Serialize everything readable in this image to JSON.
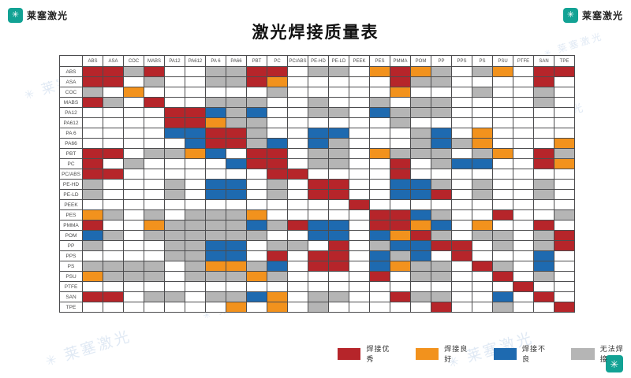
{
  "brand": {
    "name": "莱塞激光"
  },
  "title": "激光焊接质量表",
  "watermark_text": "莱塞激光",
  "legend": [
    {
      "key": "R",
      "label": "焊接优秀"
    },
    {
      "key": "O",
      "label": "焊接良好"
    },
    {
      "key": "B",
      "label": "焊接不良"
    },
    {
      "key": "G",
      "label": "无法焊接"
    }
  ],
  "colors": {
    "R": "#b6252a",
    "O": "#f2921d",
    "B": "#1e6ab0",
    "G": "#b5b5b5",
    "W": "#ffffff"
  },
  "chart_data": {
    "type": "heatmap",
    "title": "激光焊接质量表",
    "x_categories": [
      "ABS",
      "ASA",
      "COC",
      "MABS",
      "PA12",
      "PA612",
      "PA 6",
      "PA66",
      "PBT",
      "PC",
      "PC/ABS",
      "PE-HD",
      "PE-LD",
      "PEEK",
      "PES",
      "PMMA",
      "POM",
      "PP",
      "PPS",
      "PS",
      "PSU",
      "PTFE",
      "SAN",
      "TPE"
    ],
    "y_categories": [
      "ABS",
      "ASA",
      "COC",
      "MABS",
      "PA12",
      "PA612",
      "PA 6",
      "PA66",
      "PBT",
      "PC",
      "PC/ABS",
      "PE-HD",
      "PE-LD",
      "PEEK",
      "PES",
      "PMMA",
      "POM",
      "PP",
      "PPS",
      "PS",
      "PSU",
      "PTFE",
      "SAN",
      "TPE"
    ],
    "cell_legend": {
      "R": "焊接优秀",
      "O": "焊接良好",
      "B": "焊接不良",
      "G": "无法焊接",
      "W": ""
    },
    "matrix": [
      "RRGRWWGGRRWGGWOROGWGOWRR",
      "RRWGWWGGROWWWWWRGGWWWWRW",
      "GWOWWWWWWGWWWWWOWWWGWWGW",
      "RGWRWWGGGWWGWWGWGGWWWWGW",
      "WWWWRRBGBWWGGWBGGGWWWWWW",
      "WWWWRROGGWWWWWWGWWWWWWWW",
      "WWWWBBRRGWWBBWWWGBWOWWWW",
      "WWWWWBRRGBWBGWWWGBGOWWWO",
      "RRWGGOBWRRWGGWOGGGWGOWRG",
      "RWGWWWWBRRWGGWWRWGBBWWRO",
      "RRWWWWWWWRRWWWWRWWWWWWWW",
      "GWWWGWBBWGWRRWWBBGWGWWGW",
      "GWWWGWBBWGWRRWWBBRWGWWGW",
      "WWWWWWWWWWWWWRWWWWWWWWWW",
      "OGWGWGGGOWWWWWRRBGWWRWWG",
      "RWWOGGGGBGRBBWRROBWOWWRW",
      "BGWGGGGGGWWBBWBORGWGGWGR",
      "GWWWGGBBWGGWRWGBBRRWGWGR",
      "WWWWGGBBWRWRRWBGBWRWWWBW",
      "GGGGWGOOGBWRRWBOGGWRGWBW",
      "OGGGWGGGOGWWWWRWGGWWRWGW",
      "WWWWWWWWWWWWWWWWWWWWWRWW",
      "RRWGGWGGBOWGGWWRGGWWBWRW",
      "WWWWWWWOWOWGWWWWWRWWGWWR"
    ]
  }
}
